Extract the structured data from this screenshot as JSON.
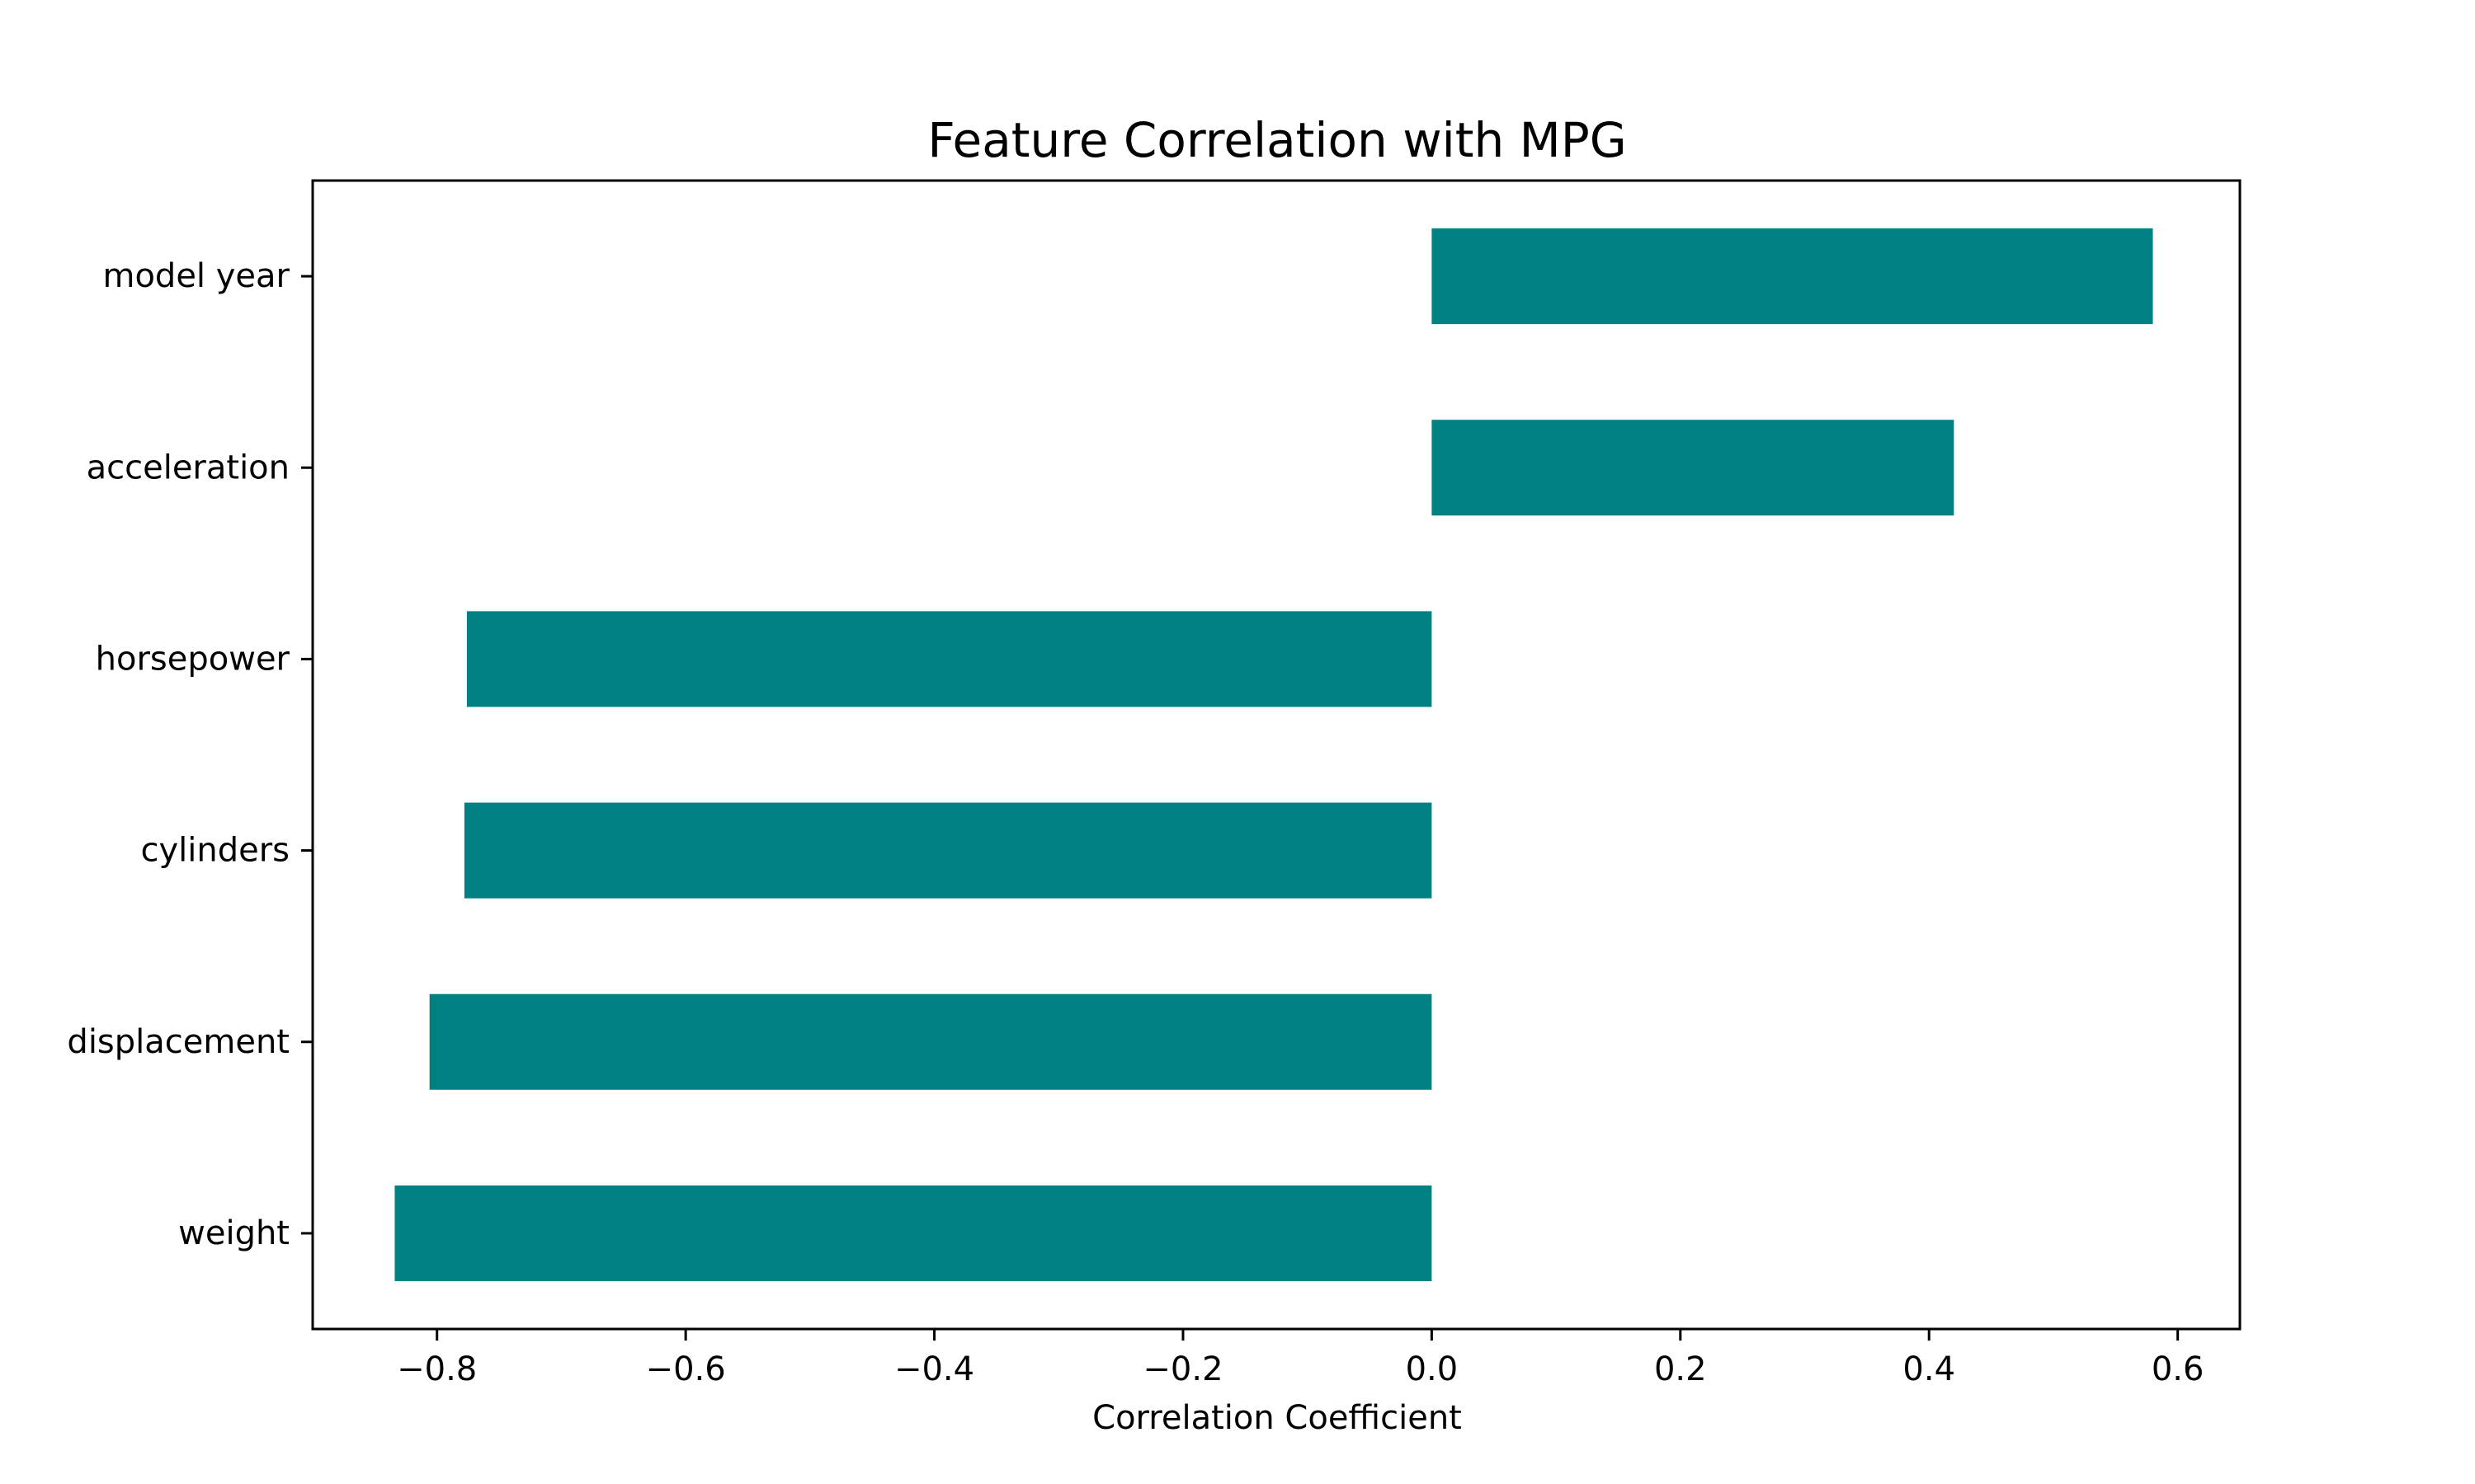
{
  "chart_data": {
    "type": "bar",
    "orientation": "horizontal",
    "title": "Feature Correlation with MPG",
    "xlabel": "Correlation Coefficient",
    "ylabel": "",
    "categories": [
      "model year",
      "acceleration",
      "horsepower",
      "cylinders",
      "displacement",
      "weight"
    ],
    "values": [
      0.58,
      0.42,
      -0.776,
      -0.778,
      -0.806,
      -0.834
    ],
    "xlim": [
      -0.9,
      0.65
    ],
    "xticks": [
      -0.8,
      -0.6,
      -0.4,
      -0.2,
      0.0,
      0.2,
      0.4,
      0.6
    ],
    "xtick_labels": [
      "−0.8",
      "−0.6",
      "−0.4",
      "−0.2",
      "0.0",
      "0.2",
      "0.4",
      "0.6"
    ],
    "grid": false,
    "legend": "none",
    "bar_color": "#008080"
  }
}
